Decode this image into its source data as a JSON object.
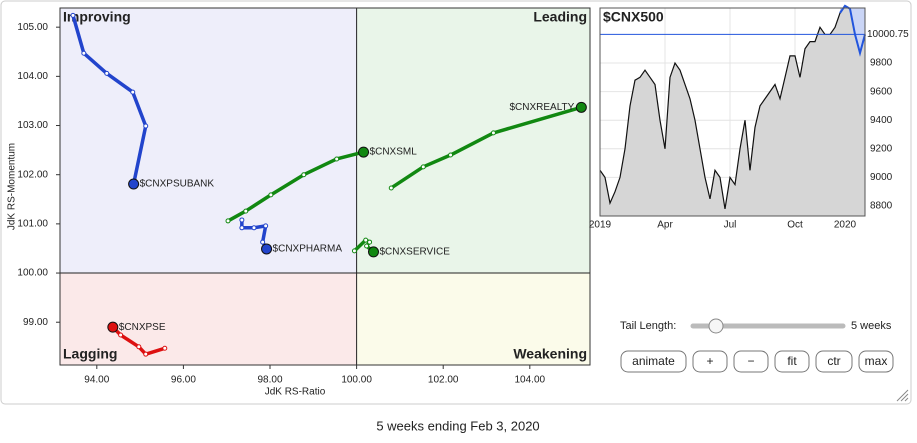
{
  "chart_data": [
    {
      "type": "scatter",
      "xlabel": "JdK RS-Ratio",
      "ylabel": "JdK RS-Momentum",
      "xlim": [
        93.15,
        105.39
      ],
      "ylim": [
        98.13,
        105.39
      ],
      "center": 100,
      "xticks": [
        {
          "value": 94,
          "label": "94.00"
        },
        {
          "value": 96,
          "label": "96.00"
        },
        {
          "value": 98,
          "label": "98.00"
        },
        {
          "value": 100,
          "label": "100.00"
        },
        {
          "value": 102,
          "label": "102.00"
        },
        {
          "value": 104,
          "label": "104.00"
        }
      ],
      "yticks": [
        {
          "value": 99,
          "label": "99.00"
        },
        {
          "value": 100,
          "label": "100.00"
        },
        {
          "value": 101,
          "label": "101.00"
        },
        {
          "value": 102,
          "label": "102.00"
        },
        {
          "value": 103,
          "label": "103.00"
        },
        {
          "value": 104,
          "label": "104.00"
        },
        {
          "value": 105,
          "label": "105.00"
        }
      ],
      "quadrants": [
        {
          "label": "Improving",
          "color": "#eeeefa",
          "text_color": "#8899dd"
        },
        {
          "label": "Leading",
          "color": "#e9f5e9",
          "text_color": "#55bb66"
        },
        {
          "label": "Lagging",
          "color": "#fbe9e9",
          "text_color": "#ee8888"
        },
        {
          "label": "Weakening",
          "color": "#fbfbea",
          "text_color": "#e8c840"
        }
      ],
      "series": [
        {
          "name": "$CNXPSUBANK",
          "color": "#2244cc",
          "x": [
            93.45,
            93.7,
            94.23,
            94.83,
            95.13,
            94.85
          ],
          "y": [
            105.24,
            104.47,
            104.06,
            103.68,
            102.99,
            101.81
          ]
        },
        {
          "name": "$CNXSML",
          "color": "#118811",
          "x": [
            97.03,
            97.44,
            98.02,
            98.78,
            99.54,
            100.16
          ],
          "y": [
            101.06,
            101.26,
            101.59,
            102.0,
            102.32,
            102.46
          ]
        },
        {
          "name": "$CNXREALTY",
          "color": "#118811",
          "x": [
            100.8,
            101.54,
            102.17,
            103.16,
            105.19
          ],
          "y": [
            101.73,
            102.16,
            102.4,
            102.85,
            103.37
          ]
        },
        {
          "name": "$CNXPHARMA",
          "color": "#2244cc",
          "x": [
            97.35,
            97.35,
            97.63,
            97.9,
            97.83,
            97.92
          ],
          "y": [
            101.08,
            100.92,
            100.92,
            100.96,
            100.63,
            100.49
          ]
        },
        {
          "name": "$CNXSERVICE",
          "color": "#118811",
          "x": [
            99.95,
            100.21,
            100.3,
            100.23,
            100.39
          ],
          "y": [
            100.45,
            100.67,
            100.63,
            100.55,
            100.43
          ]
        },
        {
          "name": "$CNXPSE",
          "color": "#dd1111",
          "x": [
            95.57,
            95.13,
            94.97,
            94.55,
            94.37
          ],
          "y": [
            98.47,
            98.35,
            98.5,
            98.74,
            98.9
          ]
        }
      ]
    },
    {
      "type": "line",
      "title": "$CNX500",
      "color": "#111111",
      "highlight_color": "#2255dd",
      "values": [
        9050,
        9000,
        8820,
        8900,
        9000,
        9200,
        9500,
        9680,
        9700,
        9750,
        9700,
        9650,
        9400,
        9200,
        9700,
        9800,
        9750,
        9650,
        9550,
        9400,
        9200,
        9000,
        8850,
        9050,
        9000,
        8780,
        9000,
        8950,
        9200,
        9400,
        9050,
        9350,
        9500,
        9550,
        9600,
        9650,
        9550,
        9700,
        9850,
        9850,
        9700,
        9900,
        9950,
        9950,
        10050,
        10000,
        10000,
        10050,
        10150,
        10200,
        10180,
        10000,
        9870,
        10000
      ],
      "last_value": 10000.75,
      "xlim": [
        0,
        53
      ],
      "ylim": [
        8730,
        10185
      ],
      "xticks": [
        {
          "value": 0,
          "label": "2019"
        },
        {
          "value": 13,
          "label": "Apr"
        },
        {
          "value": 26,
          "label": "Jul"
        },
        {
          "value": 39,
          "label": "Oct"
        },
        {
          "value": 49,
          "label": "2020"
        }
      ],
      "yticks": [
        8800,
        9000,
        9200,
        9400,
        9600,
        9800
      ]
    }
  ],
  "controls": {
    "tail_label": "Tail Length:",
    "tail_length": 5,
    "tail_value_label": "5 weeks",
    "buttons": [
      "animate",
      "+",
      "−",
      "fit",
      "ctr",
      "max"
    ]
  },
  "caption": "5 weeks ending Feb 3, 2020"
}
